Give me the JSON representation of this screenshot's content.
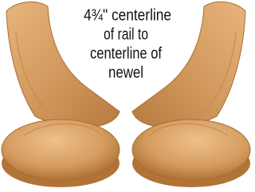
{
  "caption": {
    "lines": [
      "4¾\" centerline",
      "of rail to",
      "centerline of",
      "newel"
    ]
  }
}
